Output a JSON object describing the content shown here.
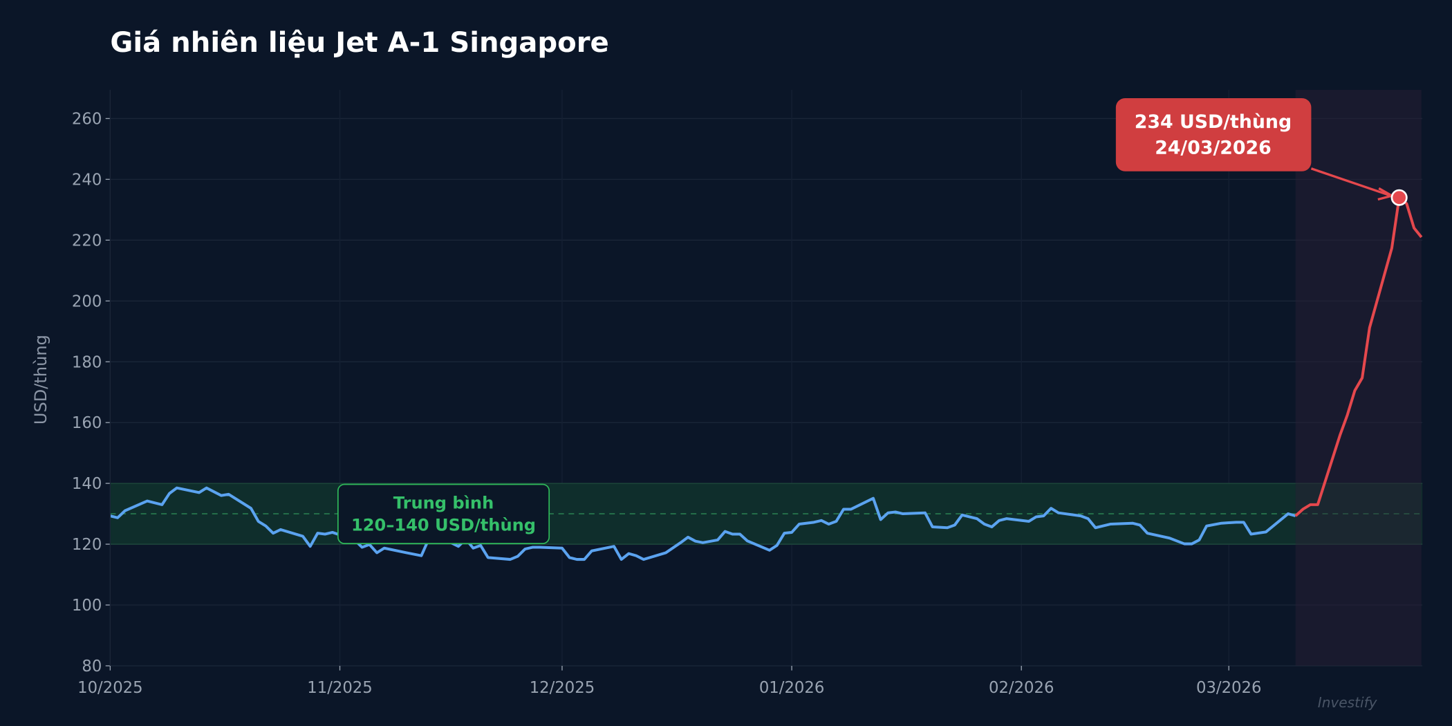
{
  "chart_data": {
    "type": "line",
    "title": "Giá nhiên liệu Jet A-1 Singapore",
    "xlabel": "",
    "ylabel": "USD/thùng",
    "ylim": [
      80,
      270
    ],
    "yticks": [
      80,
      100,
      120,
      140,
      160,
      180,
      200,
      220,
      240,
      260
    ],
    "xlim": [
      "2025-10-01",
      "2026-03-27"
    ],
    "xticks": [
      {
        "date": "2025-10-01",
        "label": "10/2025"
      },
      {
        "date": "2025-11-01",
        "label": "11/2025"
      },
      {
        "date": "2025-12-01",
        "label": "12/2025"
      },
      {
        "date": "2026-01-01",
        "label": "01/2026"
      },
      {
        "date": "2026-02-01",
        "label": "02/2026"
      },
      {
        "date": "2026-03-01",
        "label": "03/2026"
      }
    ],
    "grid": true,
    "colors": {
      "background": "#0b1628",
      "normal_line": "#5ba3f0",
      "spike_line": "#e5484d",
      "band_fill": "#0f2e2c",
      "band_border": "#2fb85a",
      "annotation_fill": "#d03e40",
      "spike_shade": "#1e1c2c"
    },
    "series": [
      {
        "color": "#5ba3f0",
        "x": [
          "2025-10-01",
          "2025-10-02",
          "2025-10-03",
          "2025-10-06",
          "2025-10-08",
          "2025-10-09",
          "2025-10-10",
          "2025-10-13",
          "2025-10-14",
          "2025-10-16",
          "2025-10-17",
          "2025-10-20",
          "2025-10-21",
          "2025-10-22",
          "2025-10-23",
          "2025-10-24",
          "2025-10-27",
          "2025-10-28",
          "2025-10-29",
          "2025-10-30",
          "2025-10-31",
          "2025-11-03",
          "2025-11-04",
          "2025-11-05",
          "2025-11-06",
          "2025-11-07",
          "2025-11-10",
          "2025-11-12",
          "2025-11-13",
          "2025-11-14",
          "2025-11-16",
          "2025-11-17",
          "2025-11-18",
          "2025-11-19",
          "2025-11-20",
          "2025-11-21",
          "2025-11-24",
          "2025-11-25",
          "2025-11-26",
          "2025-11-27",
          "2025-11-28",
          "2025-12-01",
          "2025-12-02",
          "2025-12-03",
          "2025-12-04",
          "2025-12-05",
          "2025-12-08",
          "2025-12-09",
          "2025-12-10",
          "2025-12-11",
          "2025-12-12",
          "2025-12-15",
          "2025-12-17",
          "2025-12-18",
          "2025-12-19",
          "2025-12-20",
          "2025-12-22",
          "2025-12-23",
          "2025-12-24",
          "2025-12-25",
          "2025-12-26",
          "2025-12-29",
          "2025-12-30",
          "2025-12-31",
          "2026-01-01",
          "2026-01-02",
          "2026-01-04",
          "2026-01-05",
          "2026-01-06",
          "2026-01-07",
          "2026-01-08",
          "2026-01-09",
          "2026-01-12",
          "2026-01-13",
          "2026-01-14",
          "2026-01-15",
          "2026-01-16",
          "2026-01-19",
          "2026-01-20",
          "2026-01-22",
          "2026-01-23",
          "2026-01-24",
          "2026-01-26",
          "2026-01-27",
          "2026-01-28",
          "2026-01-29",
          "2026-01-30",
          "2026-02-02",
          "2026-02-03",
          "2026-02-04",
          "2026-02-05",
          "2026-02-06",
          "2026-02-09",
          "2026-02-10",
          "2026-02-11",
          "2026-02-13",
          "2026-02-16",
          "2026-02-17",
          "2026-02-18",
          "2026-02-21",
          "2026-02-23",
          "2026-02-24",
          "2026-02-25",
          "2026-02-26",
          "2026-02-28",
          "2026-03-02",
          "2026-03-03",
          "2026-03-04",
          "2026-03-06",
          "2026-03-09",
          "2026-03-10"
        ],
        "y": [
          129.3,
          128.7,
          131.0,
          134.2,
          133.0,
          136.7,
          138.5,
          137.0,
          138.5,
          136.0,
          136.4,
          131.8,
          127.5,
          126.0,
          123.6,
          124.8,
          122.6,
          119.3,
          123.6,
          123.3,
          123.9,
          121.4,
          119.0,
          119.9,
          117.2,
          118.7,
          117.2,
          116.2,
          121.7,
          122.0,
          120.5,
          119.3,
          121.7,
          118.7,
          119.6,
          115.6,
          115.0,
          116.0,
          118.4,
          119.0,
          119.0,
          118.7,
          115.6,
          115.0,
          115.0,
          117.8,
          119.3,
          115.0,
          116.9,
          116.2,
          115.0,
          117.2,
          120.5,
          122.3,
          121.0,
          120.5,
          121.4,
          124.2,
          123.3,
          123.3,
          121.1,
          118.0,
          119.6,
          123.6,
          123.9,
          126.6,
          127.2,
          127.8,
          126.6,
          127.5,
          131.5,
          131.5,
          135.1,
          128.1,
          130.3,
          130.6,
          130.0,
          130.3,
          125.7,
          125.4,
          126.3,
          129.6,
          128.4,
          126.6,
          125.7,
          127.8,
          128.4,
          127.5,
          129.0,
          129.3,
          131.8,
          130.3,
          129.3,
          128.4,
          125.4,
          126.6,
          126.9,
          126.3,
          123.6,
          122.0,
          120.1,
          120.1,
          121.4,
          126.0,
          126.9,
          127.2,
          127.2,
          123.3,
          124.0,
          130.0,
          129.3
        ]
      },
      {
        "color": "#e5484d",
        "x": [
          "2026-03-10",
          "2026-03-11",
          "2026-03-12",
          "2026-03-13",
          "2026-03-16",
          "2026-03-17",
          "2026-03-18",
          "2026-03-19",
          "2026-03-20",
          "2026-03-23",
          "2026-03-24",
          "2026-03-25",
          "2026-03-26",
          "2026-03-27"
        ],
        "y": [
          129.3,
          131.5,
          133.0,
          133.0,
          155.8,
          162.5,
          170.5,
          174.7,
          191.2,
          217.4,
          234.0,
          232.0,
          224.0,
          221.0
        ]
      }
    ],
    "shaded_band": {
      "from": 120,
      "to": 140,
      "mean": 130,
      "label_line1": "Trung bình",
      "label_line2": "120–140 USD/thùng"
    },
    "spike_region": {
      "from": "2026-03-10",
      "to": "2026-03-27"
    },
    "annotation": {
      "date": "2026-03-24",
      "value": 234,
      "line1": "234 USD/thùng",
      "line2": "24/03/2026"
    },
    "watermark": "Investify"
  }
}
